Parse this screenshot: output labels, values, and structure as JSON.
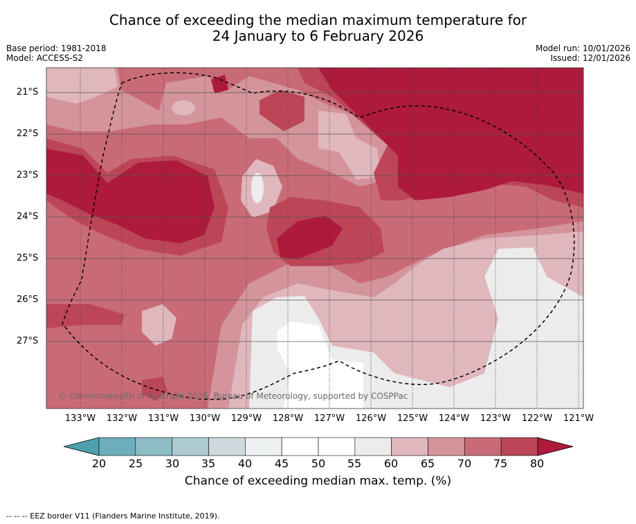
{
  "title_line1": "Chance of exceeding the median maximum temperature for",
  "title_line2": "24 January to 6 February 2026",
  "meta": {
    "base_period": "Base period: 1981-2018",
    "model": "Model: ACCESS-S2",
    "model_run": "Model run: 10/01/2026",
    "issued": "Issued: 12/01/2026"
  },
  "map": {
    "lat_labels": [
      "21°S",
      "22°S",
      "23°S",
      "24°S",
      "25°S",
      "26°S",
      "27°S"
    ],
    "lon_labels": [
      "133°W",
      "132°W",
      "131°W",
      "130°W",
      "129°W",
      "128°W",
      "127°W",
      "126°W",
      "125°W",
      "124°W",
      "123°W",
      "122°W",
      "121°W"
    ],
    "copyright": "© Commonwealth of Australia 2026, Bureau of Meteorology, supported by COSPPac"
  },
  "colorbar": {
    "ticks": [
      "20",
      "25",
      "30",
      "35",
      "40",
      "45",
      "50",
      "55",
      "60",
      "65",
      "70",
      "75",
      "80"
    ],
    "colors": [
      "#4ea0ad",
      "#6caebb",
      "#8dbcc5",
      "#adcacf",
      "#cdd9dc",
      "#ecf0f1",
      "#ffffff",
      "#ffffff",
      "#ececec",
      "#e0b7bc",
      "#d4949b",
      "#c96b76",
      "#bc4657",
      "#ad1a3c"
    ],
    "label": "Chance of exceeding median max. temp. (%)"
  },
  "footer": "--  --  -- EEZ border V11 (Flanders Marine Institute, 2019)."
}
